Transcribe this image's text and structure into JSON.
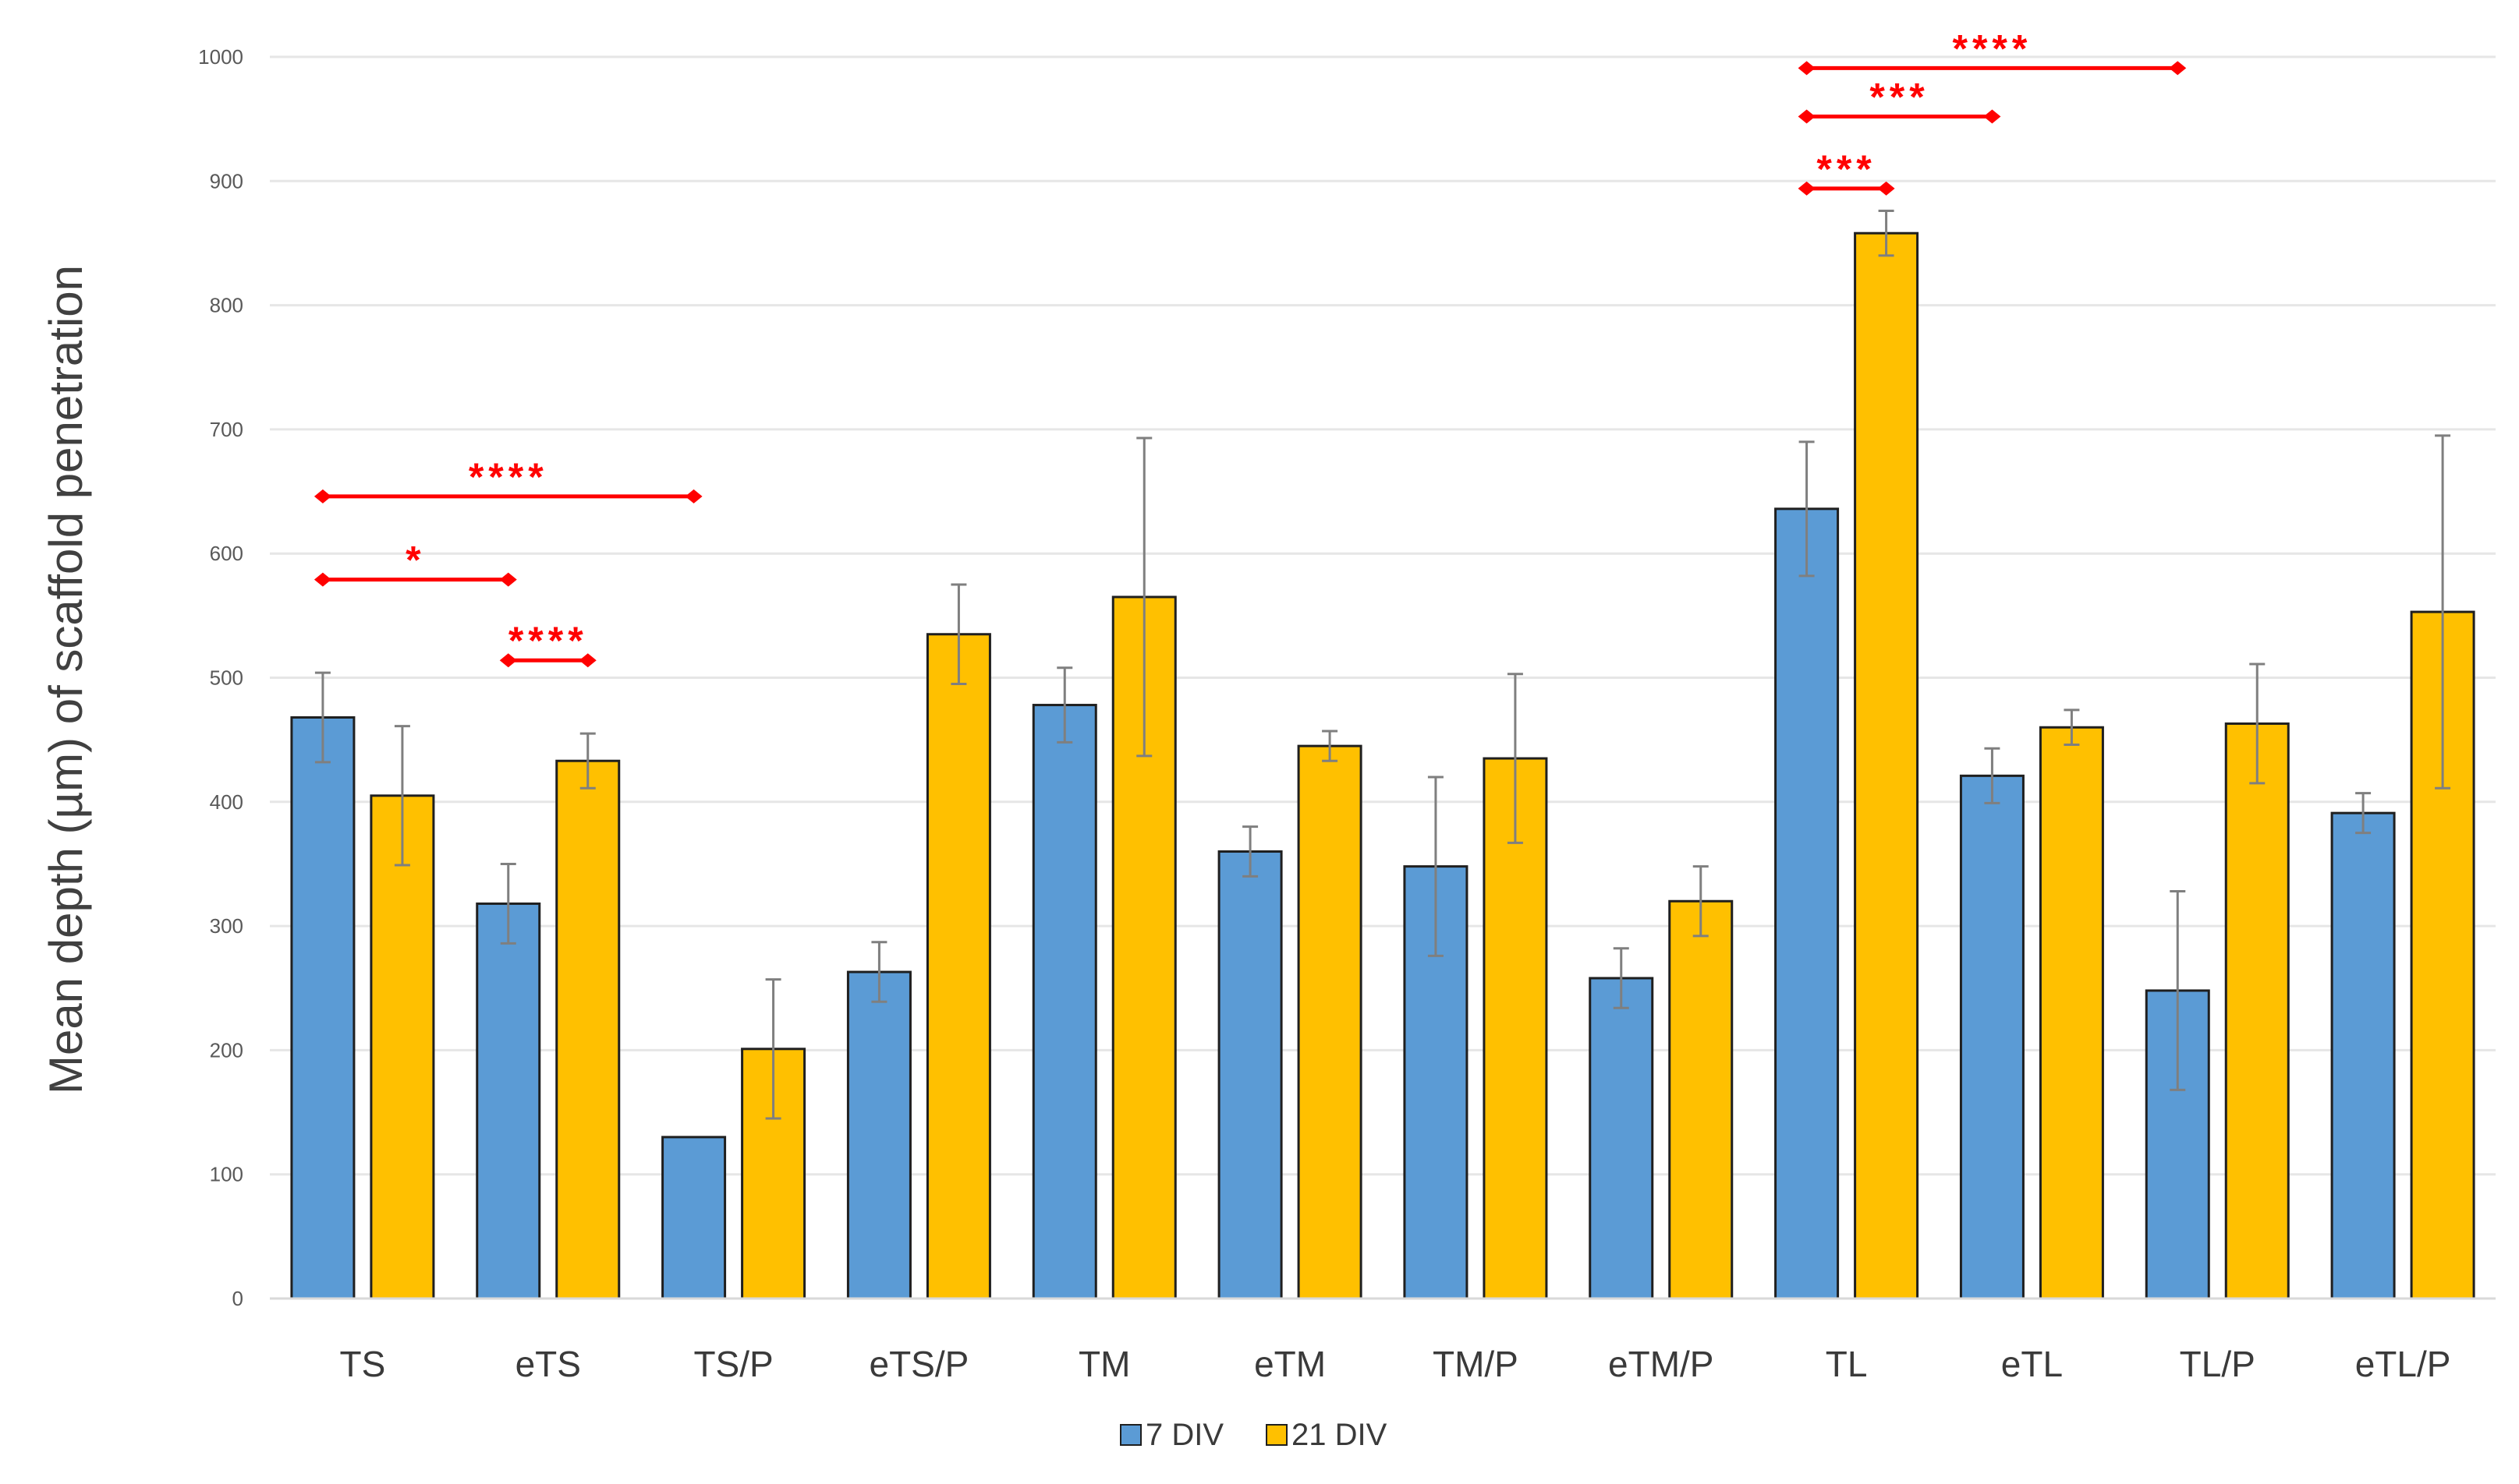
{
  "chart_data": {
    "type": "bar",
    "title": "",
    "xlabel": "",
    "ylabel": "Mean depth (µm) of scaffold penetration",
    "ylim": [
      0,
      1000
    ],
    "yticks": [
      "0",
      "100",
      "200",
      "300",
      "400",
      "500",
      "600",
      "700",
      "800",
      "900",
      "1000"
    ],
    "grid": true,
    "legend_position": "bottom-center",
    "categories": [
      "TS",
      "eTS",
      "TS/P",
      "eTS/P",
      "TM",
      "eTM",
      "TM/P",
      "eTM/P",
      "TL",
      "eTL",
      "TL/P",
      "eTL/P"
    ],
    "series": [
      {
        "name": "7 DIV",
        "color": "#5b9bd5",
        "values": [
          468,
          318,
          130,
          263,
          478,
          360,
          348,
          258,
          636,
          421,
          248,
          391
        ],
        "errors": [
          36,
          32,
          0,
          24,
          30,
          20,
          72,
          24,
          54,
          22,
          80,
          16
        ]
      },
      {
        "name": "21 DIV",
        "color": "#ffc000",
        "values": [
          405,
          433,
          201,
          535,
          565,
          445,
          435,
          320,
          858,
          460,
          463,
          553
        ],
        "errors": [
          56,
          22,
          56,
          40,
          128,
          12,
          68,
          28,
          18,
          14,
          48,
          142
        ]
      }
    ],
    "annotations": [
      {
        "label": "****",
        "from": {
          "category": "TS",
          "series": 0
        },
        "to": {
          "category": "TS/P",
          "series": 0
        },
        "y": 646
      },
      {
        "label": "*",
        "from": {
          "category": "TS",
          "series": 0
        },
        "to": {
          "category": "eTS",
          "series": 0
        },
        "y": 579
      },
      {
        "label": "****",
        "from": {
          "category": "eTS",
          "series": 0
        },
        "to": {
          "category": "eTS",
          "series": 1
        },
        "y": 514
      },
      {
        "label": "****",
        "from": {
          "category": "TL",
          "series": 0
        },
        "to": {
          "category": "TL/P",
          "series": 0
        },
        "y": 991
      },
      {
        "label": "***",
        "from": {
          "category": "TL",
          "series": 0
        },
        "to": {
          "category": "eTL",
          "series": 0
        },
        "y": 952
      },
      {
        "label": "***",
        "from": {
          "category": "TL",
          "series": 0
        },
        "to": {
          "category": "TL",
          "series": 1
        },
        "y": 894
      }
    ],
    "annotation_color": "#ff0000"
  }
}
